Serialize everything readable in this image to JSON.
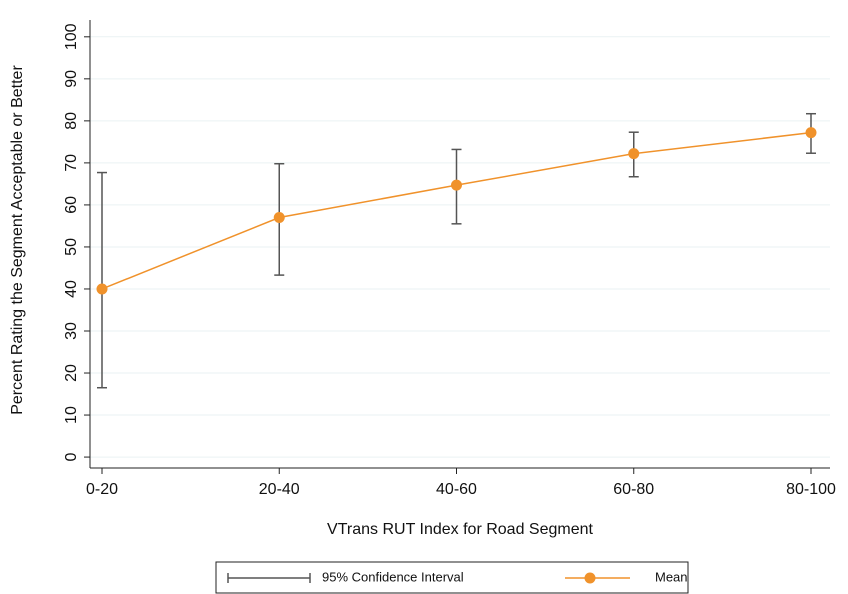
{
  "chart_data": {
    "type": "line",
    "x_label": "VTrans RUT Index for Road Segment",
    "y_label": "Percent Rating the Segment Acceptable or Better",
    "categories": [
      "0-20",
      "20-40",
      "40-60",
      "60-80",
      "80-100"
    ],
    "series": [
      {
        "name": "95% Confidence Interval",
        "color": "#555555",
        "lower": [
          16.5,
          43.3,
          55.5,
          66.7,
          72.3
        ],
        "upper": [
          67.7,
          69.8,
          73.2,
          77.3,
          81.7
        ]
      },
      {
        "name": "Mean",
        "color": "#f0922b",
        "values": [
          40,
          57,
          64.7,
          72.2,
          77.2
        ]
      }
    ],
    "ylim": [
      -2.6,
      104
    ],
    "yticks": [
      0,
      10,
      20,
      30,
      40,
      50,
      60,
      70,
      80,
      90,
      100
    ],
    "grid": true
  }
}
